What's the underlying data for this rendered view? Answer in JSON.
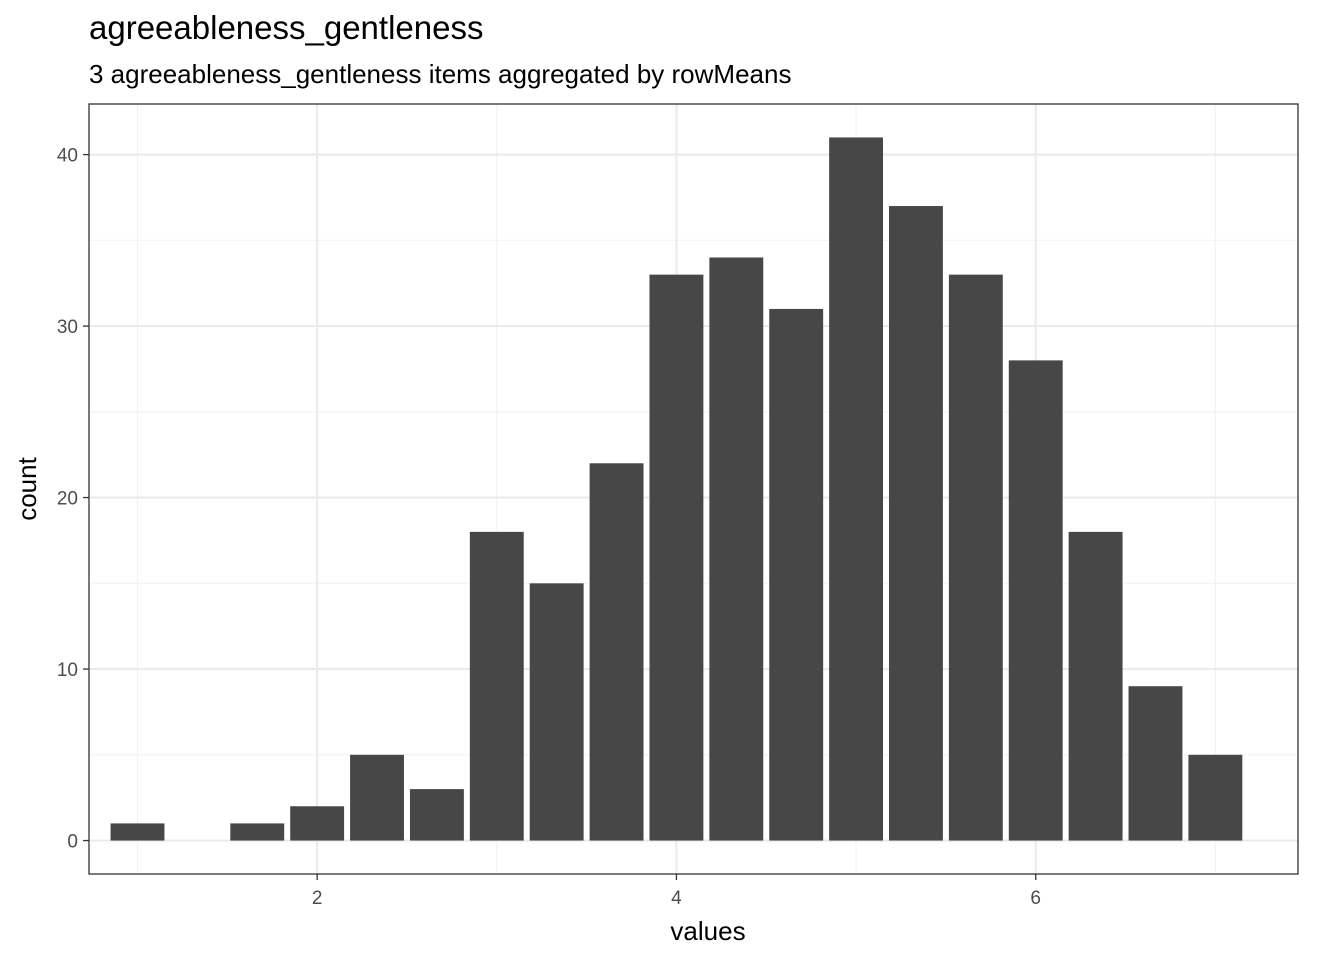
{
  "chart_data": {
    "type": "bar",
    "title": "agreeableness_gentleness",
    "subtitle": "3 agreeableness_gentleness items aggregated by rowMeans",
    "xlabel": "values",
    "ylabel": "count",
    "xlim": [
      0.73,
      7.46
    ],
    "ylim": [
      -1.95,
      42.95
    ],
    "x_ticks": [
      2,
      4,
      6
    ],
    "y_ticks": [
      0,
      10,
      20,
      30,
      40
    ],
    "grid": true,
    "bin_width": 0.3333,
    "x": [
      1.0,
      1.6667,
      2.0,
      2.3333,
      2.6667,
      3.0,
      3.3333,
      3.6667,
      4.0,
      4.3333,
      4.6667,
      5.0,
      5.3333,
      5.6667,
      6.0,
      6.3333,
      6.6667,
      7.0
    ],
    "values": [
      1,
      1,
      2,
      5,
      3,
      18,
      15,
      22,
      33,
      34,
      31,
      41,
      37,
      33,
      28,
      18,
      9,
      5
    ],
    "colors": {
      "bar": "#474747",
      "grid_major": "#ebebeb",
      "grid_minor": "#f2f2f2",
      "border": "#333333"
    }
  }
}
